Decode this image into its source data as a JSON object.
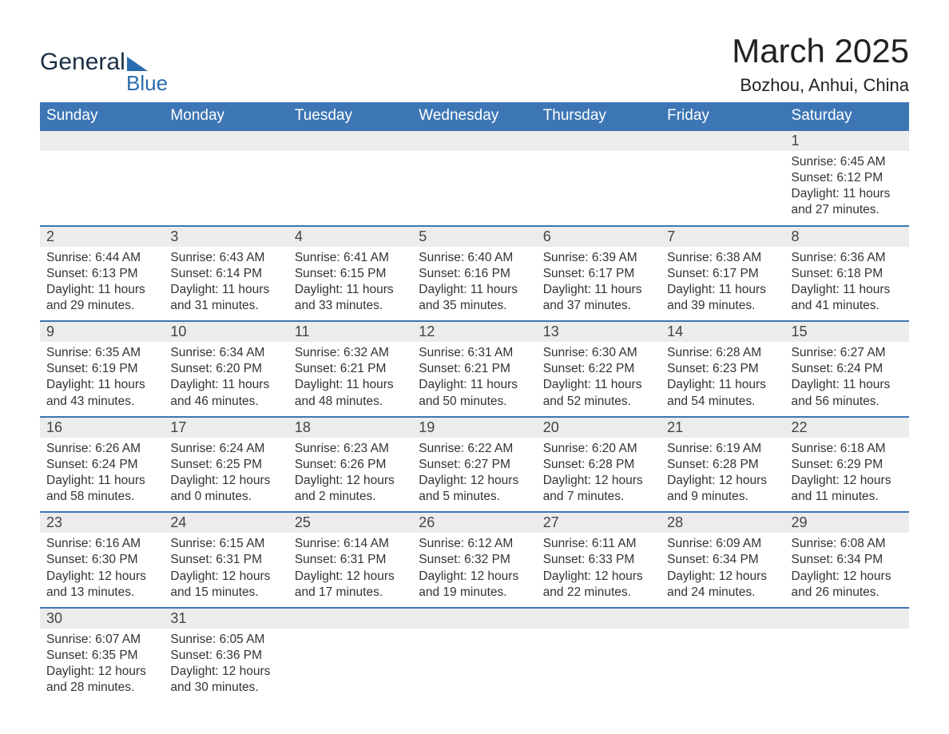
{
  "logo": {
    "word1": "General",
    "word2": "Blue"
  },
  "title": "March 2025",
  "location": "Bozhou, Anhui, China",
  "colors": {
    "header_bg": "#3d76b5",
    "header_fg": "#ffffff",
    "daynum_bg": "#ececec",
    "row_border": "#3d76b5",
    "text": "#333333",
    "logo_dark": "#1b2f44",
    "logo_blue": "#2a6cb0"
  },
  "fonts": {
    "title_size": 42,
    "location_size": 22,
    "dayhdr_size": 19,
    "daynum_size": 18,
    "cell_size": 15.5
  },
  "day_headers": [
    "Sunday",
    "Monday",
    "Tuesday",
    "Wednesday",
    "Thursday",
    "Friday",
    "Saturday"
  ],
  "weeks": [
    [
      null,
      null,
      null,
      null,
      null,
      null,
      {
        "n": "1",
        "sr": "6:45 AM",
        "ss": "6:12 PM",
        "dl": "11 hours and 27 minutes."
      }
    ],
    [
      {
        "n": "2",
        "sr": "6:44 AM",
        "ss": "6:13 PM",
        "dl": "11 hours and 29 minutes."
      },
      {
        "n": "3",
        "sr": "6:43 AM",
        "ss": "6:14 PM",
        "dl": "11 hours and 31 minutes."
      },
      {
        "n": "4",
        "sr": "6:41 AM",
        "ss": "6:15 PM",
        "dl": "11 hours and 33 minutes."
      },
      {
        "n": "5",
        "sr": "6:40 AM",
        "ss": "6:16 PM",
        "dl": "11 hours and 35 minutes."
      },
      {
        "n": "6",
        "sr": "6:39 AM",
        "ss": "6:17 PM",
        "dl": "11 hours and 37 minutes."
      },
      {
        "n": "7",
        "sr": "6:38 AM",
        "ss": "6:17 PM",
        "dl": "11 hours and 39 minutes."
      },
      {
        "n": "8",
        "sr": "6:36 AM",
        "ss": "6:18 PM",
        "dl": "11 hours and 41 minutes."
      }
    ],
    [
      {
        "n": "9",
        "sr": "6:35 AM",
        "ss": "6:19 PM",
        "dl": "11 hours and 43 minutes."
      },
      {
        "n": "10",
        "sr": "6:34 AM",
        "ss": "6:20 PM",
        "dl": "11 hours and 46 minutes."
      },
      {
        "n": "11",
        "sr": "6:32 AM",
        "ss": "6:21 PM",
        "dl": "11 hours and 48 minutes."
      },
      {
        "n": "12",
        "sr": "6:31 AM",
        "ss": "6:21 PM",
        "dl": "11 hours and 50 minutes."
      },
      {
        "n": "13",
        "sr": "6:30 AM",
        "ss": "6:22 PM",
        "dl": "11 hours and 52 minutes."
      },
      {
        "n": "14",
        "sr": "6:28 AM",
        "ss": "6:23 PM",
        "dl": "11 hours and 54 minutes."
      },
      {
        "n": "15",
        "sr": "6:27 AM",
        "ss": "6:24 PM",
        "dl": "11 hours and 56 minutes."
      }
    ],
    [
      {
        "n": "16",
        "sr": "6:26 AM",
        "ss": "6:24 PM",
        "dl": "11 hours and 58 minutes."
      },
      {
        "n": "17",
        "sr": "6:24 AM",
        "ss": "6:25 PM",
        "dl": "12 hours and 0 minutes."
      },
      {
        "n": "18",
        "sr": "6:23 AM",
        "ss": "6:26 PM",
        "dl": "12 hours and 2 minutes."
      },
      {
        "n": "19",
        "sr": "6:22 AM",
        "ss": "6:27 PM",
        "dl": "12 hours and 5 minutes."
      },
      {
        "n": "20",
        "sr": "6:20 AM",
        "ss": "6:28 PM",
        "dl": "12 hours and 7 minutes."
      },
      {
        "n": "21",
        "sr": "6:19 AM",
        "ss": "6:28 PM",
        "dl": "12 hours and 9 minutes."
      },
      {
        "n": "22",
        "sr": "6:18 AM",
        "ss": "6:29 PM",
        "dl": "12 hours and 11 minutes."
      }
    ],
    [
      {
        "n": "23",
        "sr": "6:16 AM",
        "ss": "6:30 PM",
        "dl": "12 hours and 13 minutes."
      },
      {
        "n": "24",
        "sr": "6:15 AM",
        "ss": "6:31 PM",
        "dl": "12 hours and 15 minutes."
      },
      {
        "n": "25",
        "sr": "6:14 AM",
        "ss": "6:31 PM",
        "dl": "12 hours and 17 minutes."
      },
      {
        "n": "26",
        "sr": "6:12 AM",
        "ss": "6:32 PM",
        "dl": "12 hours and 19 minutes."
      },
      {
        "n": "27",
        "sr": "6:11 AM",
        "ss": "6:33 PM",
        "dl": "12 hours and 22 minutes."
      },
      {
        "n": "28",
        "sr": "6:09 AM",
        "ss": "6:34 PM",
        "dl": "12 hours and 24 minutes."
      },
      {
        "n": "29",
        "sr": "6:08 AM",
        "ss": "6:34 PM",
        "dl": "12 hours and 26 minutes."
      }
    ],
    [
      {
        "n": "30",
        "sr": "6:07 AM",
        "ss": "6:35 PM",
        "dl": "12 hours and 28 minutes."
      },
      {
        "n": "31",
        "sr": "6:05 AM",
        "ss": "6:36 PM",
        "dl": "12 hours and 30 minutes."
      },
      null,
      null,
      null,
      null,
      null
    ]
  ],
  "labels": {
    "sunrise": "Sunrise: ",
    "sunset": "Sunset: ",
    "daylight": "Daylight: "
  }
}
